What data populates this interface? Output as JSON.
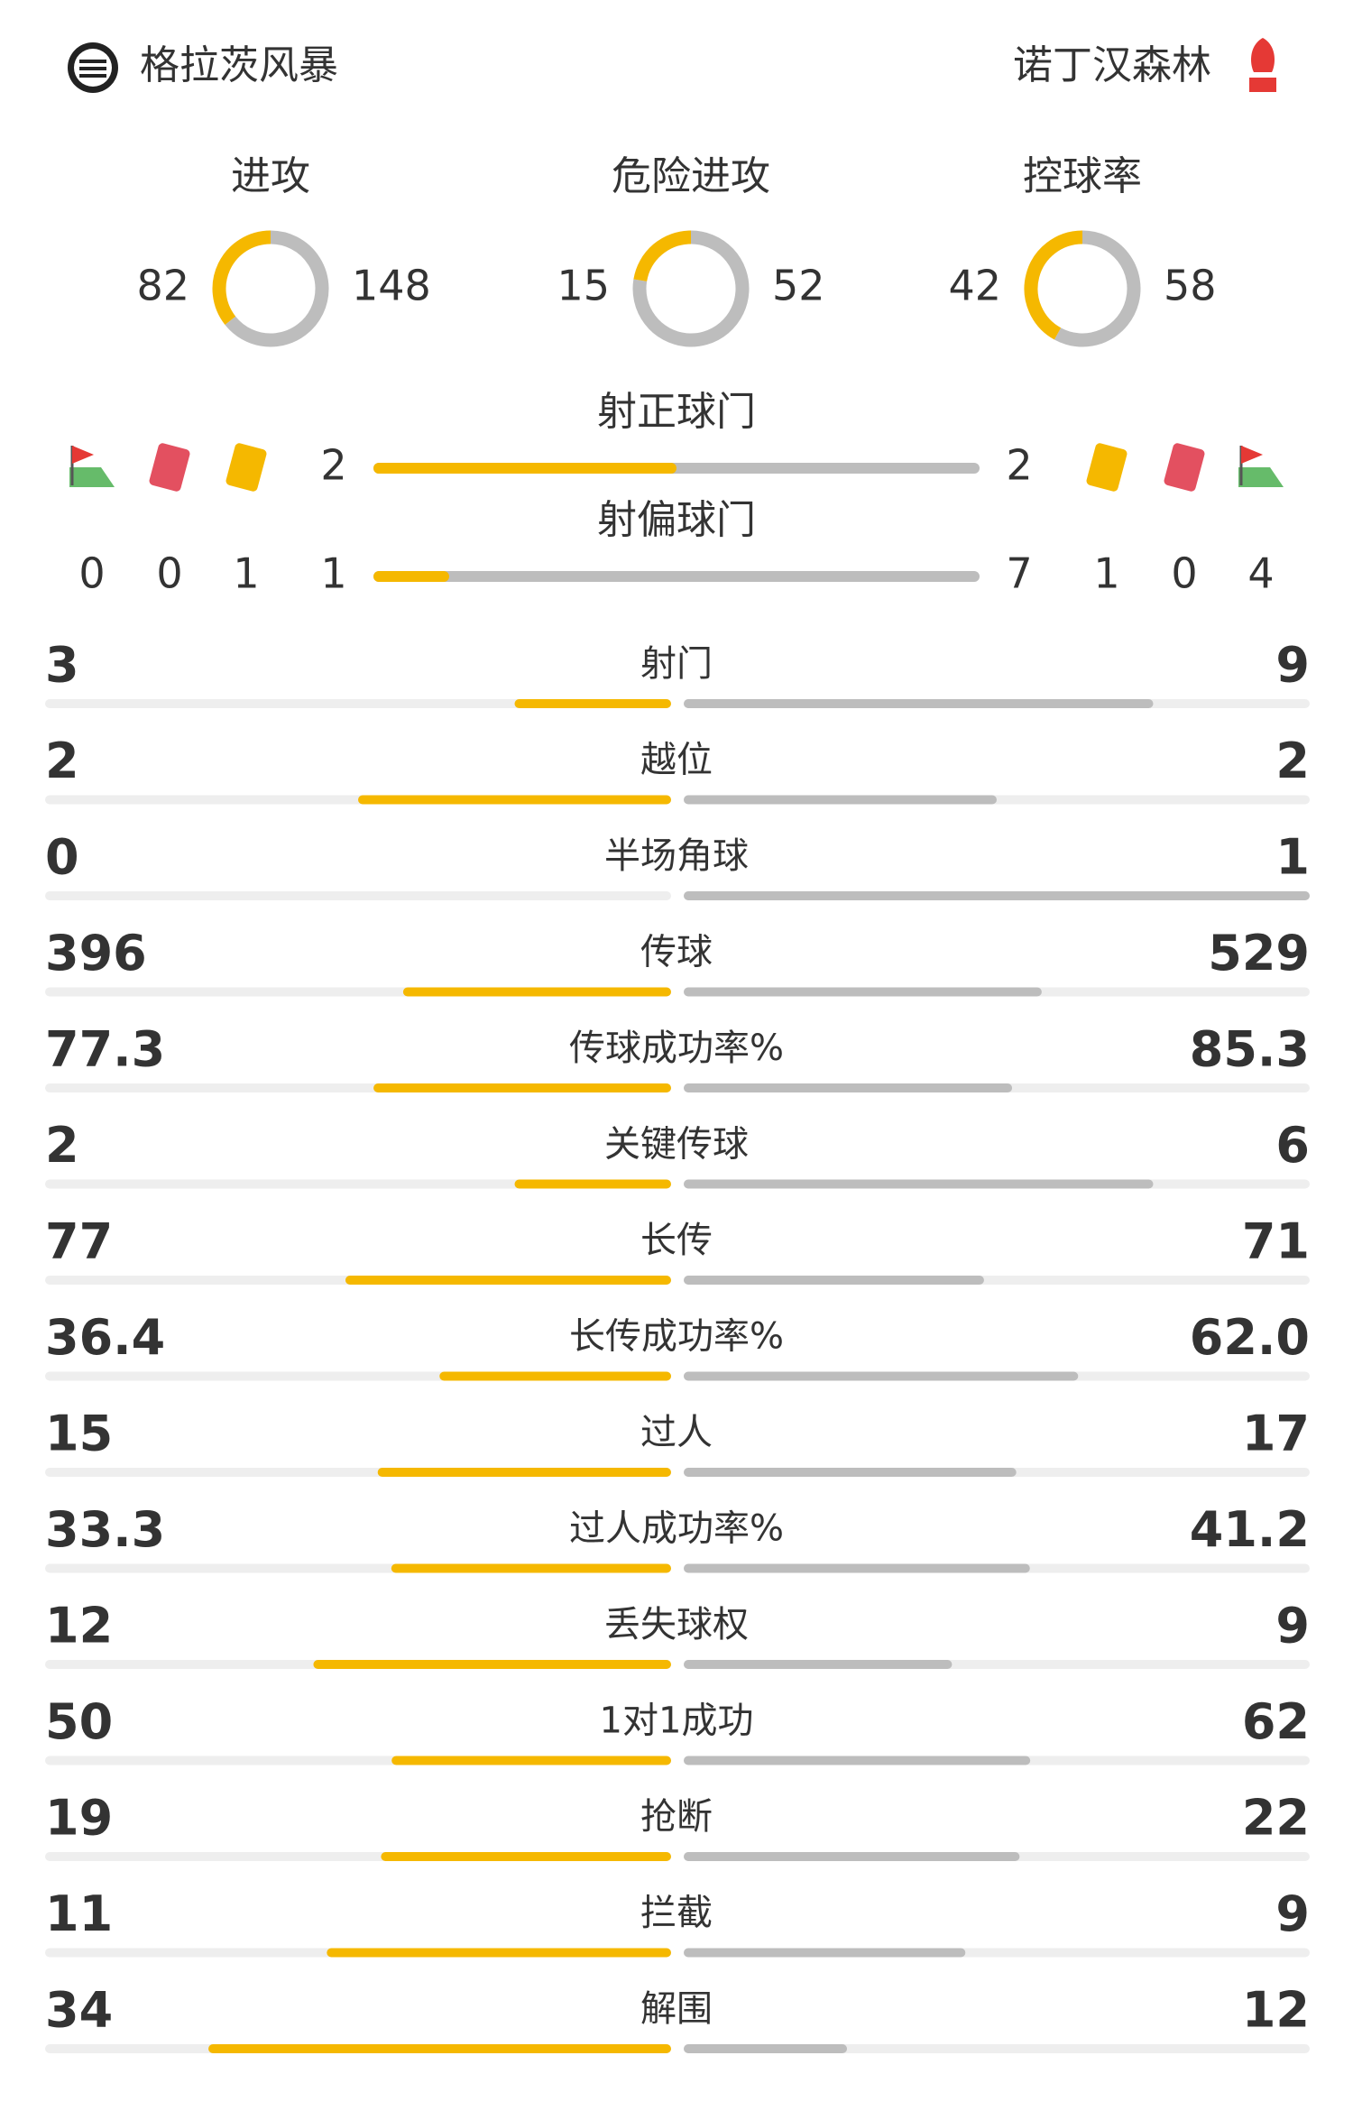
{
  "header": {
    "home": {
      "name": "格拉茨风暴"
    },
    "away": {
      "name": "诺丁汉森林"
    }
  },
  "rings": [
    {
      "label": "进攻",
      "home": 82,
      "away": 148
    },
    {
      "label": "危险进攻",
      "home": 15,
      "away": 52
    },
    {
      "label": "控球率",
      "home": 42,
      "away": 58
    }
  ],
  "shots": [
    {
      "label": "射正球门",
      "home": 2,
      "away": 2
    },
    {
      "label": "射偏球门",
      "home": 1,
      "away": 7
    }
  ],
  "cards": {
    "home": {
      "corners": 0,
      "red": 0,
      "yellow": 1
    },
    "away": {
      "yellow": 1,
      "red": 0,
      "corners": 4
    }
  },
  "stats": [
    {
      "label": "射门",
      "home": 3,
      "away": 9
    },
    {
      "label": "越位",
      "home": 2,
      "away": 2
    },
    {
      "label": "半场角球",
      "home": 0,
      "away": 1
    },
    {
      "label": "传球",
      "home": 396,
      "away": 529
    },
    {
      "label": "传球成功率%",
      "home": 77.3,
      "away": 85.3
    },
    {
      "label": "关键传球",
      "home": 2,
      "away": 6
    },
    {
      "label": "长传",
      "home": 77,
      "away": 71
    },
    {
      "label": "长传成功率%",
      "home": 36.4,
      "away": 62,
      "away_label": "62.0"
    },
    {
      "label": "过人",
      "home": 15,
      "away": 17
    },
    {
      "label": "过人成功率%",
      "home": 33.3,
      "away": 41.2
    },
    {
      "label": "丢失球权",
      "home": 12,
      "away": 9
    },
    {
      "label": "1对1成功",
      "home": 50,
      "away": 62
    },
    {
      "label": "抢断",
      "home": 19,
      "away": 22
    },
    {
      "label": "拦截",
      "home": 11,
      "away": 9
    },
    {
      "label": "解围",
      "home": 34,
      "away": 12
    }
  ]
}
